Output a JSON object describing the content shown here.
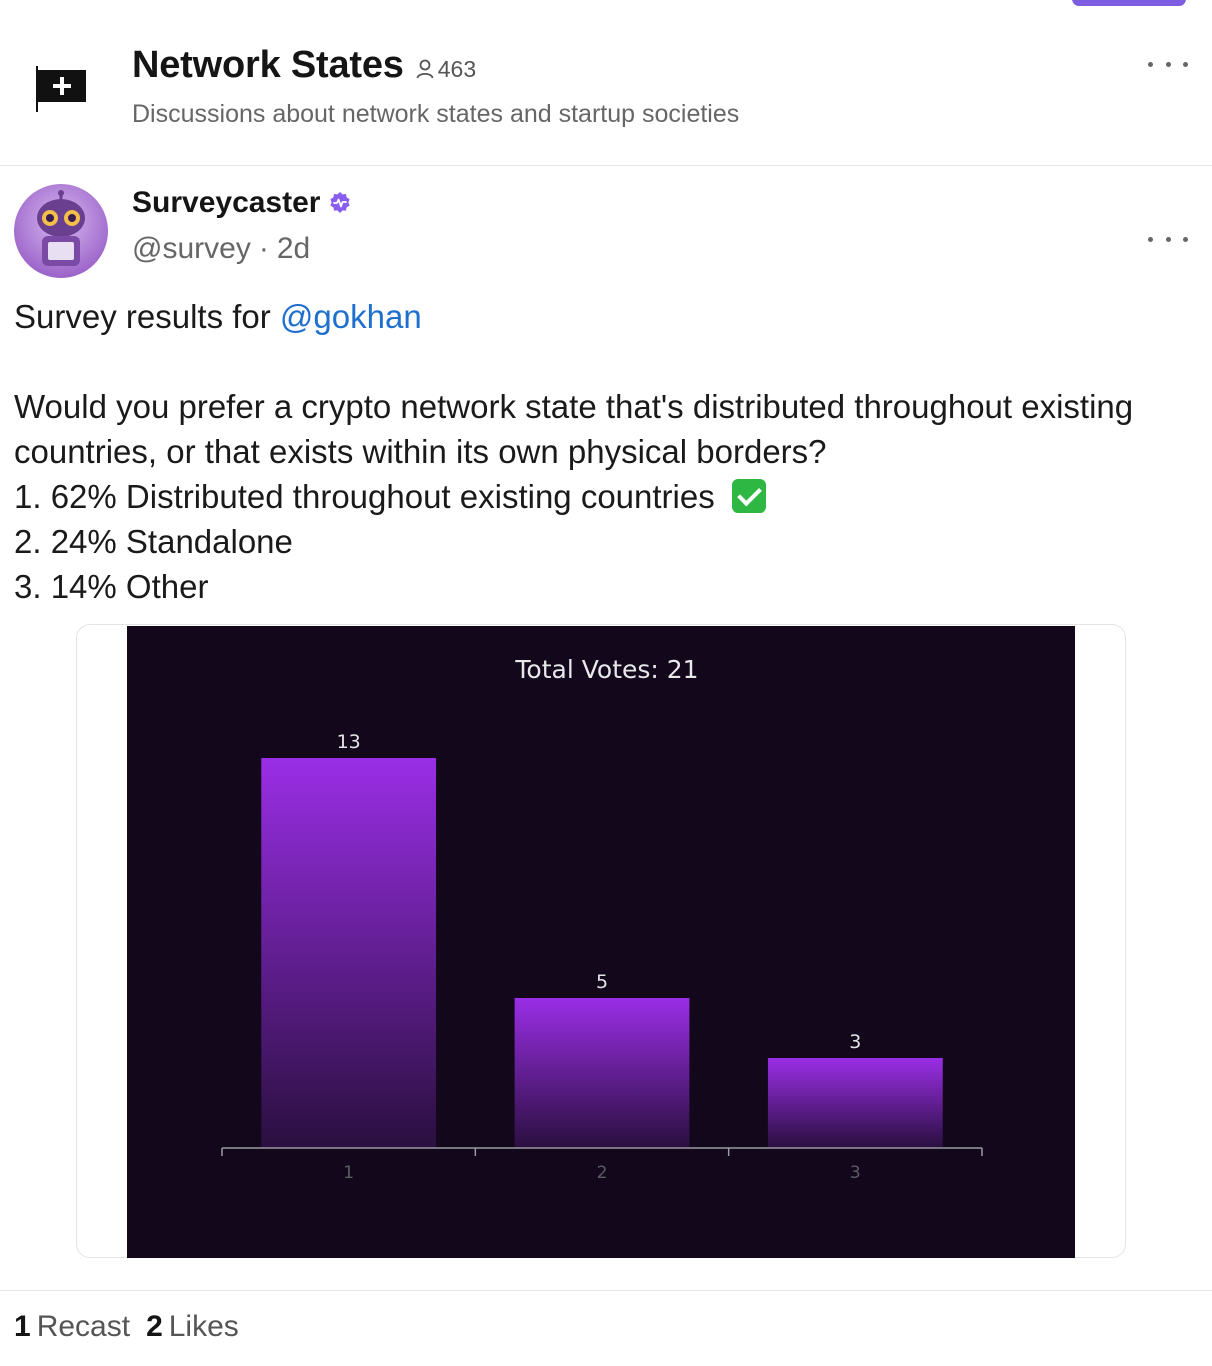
{
  "channel": {
    "title": "Network States",
    "member_count": "463",
    "description": "Discussions about network states and startup societies",
    "icon": "flag-plus-icon"
  },
  "cast": {
    "author_name": "Surveycaster",
    "handle": "@survey",
    "time": "2d",
    "separator": "·",
    "text_prefix": "Survey results for ",
    "mention": "@gokhan",
    "question": "Would you prefer a crypto network state that's distributed throughout existing countries, or that exists within its own physical borders?",
    "results": [
      "1. 62% Distributed throughout existing countries",
      "2. 24% Standalone",
      "3. 14% Other"
    ]
  },
  "footer": {
    "recasts_count": "1",
    "recasts_label": "Recast",
    "likes_count": "2",
    "likes_label": "Likes"
  },
  "colors": {
    "accent": "#7c5ce0",
    "mention": "#1f6fce",
    "chart_bg": "#12071b",
    "bar_top": "#9a2ee6",
    "bar_bottom": "#2a0f3f",
    "check_green": "#2fb744"
  },
  "chart_data": {
    "type": "bar",
    "title": "Total Votes: 21",
    "categories": [
      "1",
      "2",
      "3"
    ],
    "values": [
      13,
      5,
      3
    ],
    "data_labels": [
      "13",
      "5",
      "3"
    ],
    "ylim": [
      0,
      15
    ],
    "grid": false,
    "legend": "none"
  }
}
